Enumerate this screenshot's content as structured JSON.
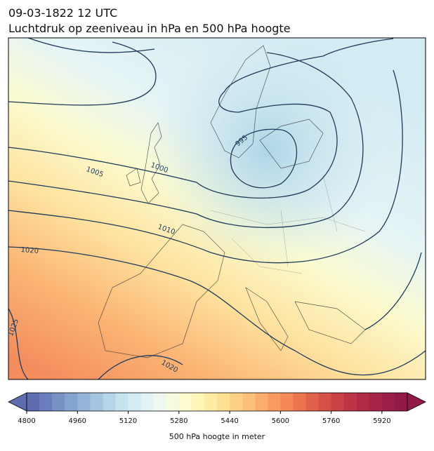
{
  "header": {
    "title": "09-03-1822 12 UTC",
    "subtitle": "Luchtdruk op zeeniveau in hPa en 500 hPa hoogte"
  },
  "contour_labels": [
    995,
    1000,
    1005,
    1010,
    1020,
    1025,
    1020
  ],
  "colorbar": {
    "label": "500 hPa hoogte in meter",
    "lim": [
      4800,
      6000
    ],
    "ticks": [
      4800,
      4960,
      5120,
      5280,
      5440,
      5600,
      5760,
      5920
    ],
    "colors": [
      "#5e6cb0",
      "#6a7ebb",
      "#7791c5",
      "#84a3ce",
      "#93b4d7",
      "#a3c5e0",
      "#b4d6e8",
      "#c4e3ef",
      "#d3ecf3",
      "#e2f3f6",
      "#eef8f0",
      "#f6fbe0",
      "#fbfbcd",
      "#fef6b8",
      "#feeca5",
      "#fee095",
      "#fdd286",
      "#fcc179",
      "#fbae6c",
      "#f99b61",
      "#f48858",
      "#ec7550",
      "#e1624a",
      "#d55046",
      "#c94045",
      "#bd3446",
      "#b12b47",
      "#a62448",
      "#9c1f48",
      "#921a48"
    ]
  }
}
